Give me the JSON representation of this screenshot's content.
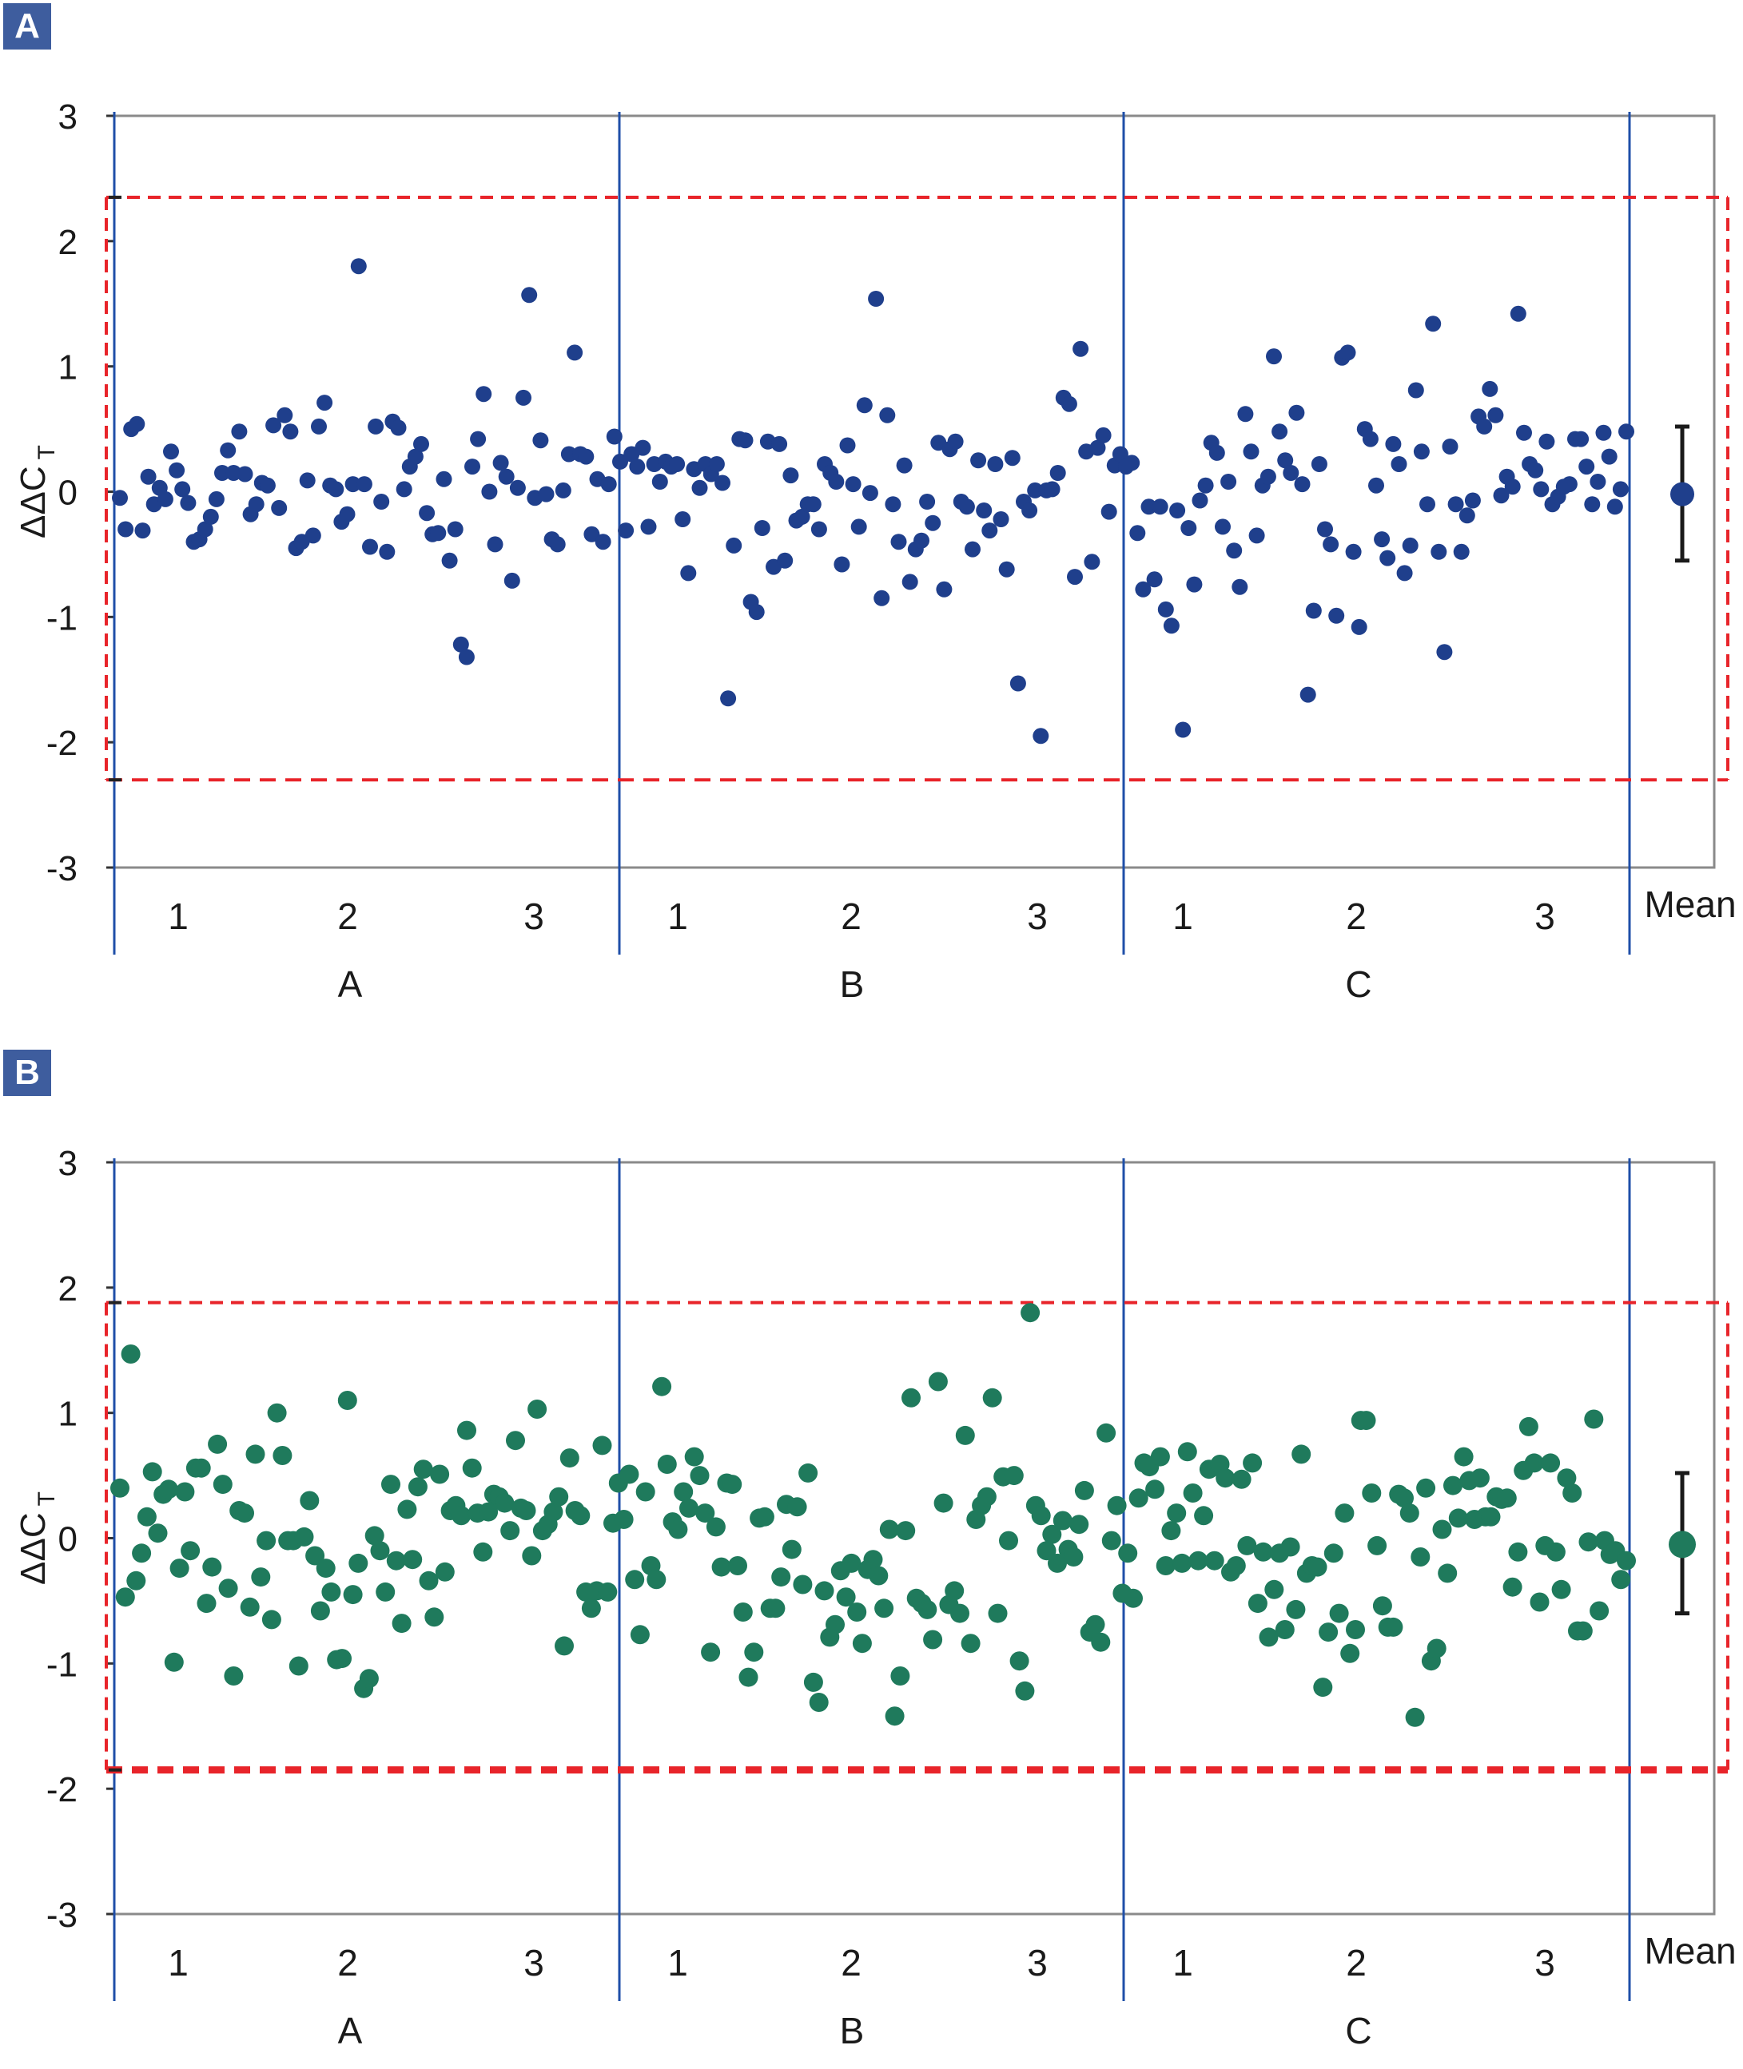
{
  "chart_data": [
    {
      "panel": "A",
      "type": "scatter",
      "ylabel": "ΔΔC",
      "ylabel_sub": "T",
      "ylim": [
        -3,
        3
      ],
      "yticks": [
        3,
        2,
        1,
        0,
        -1,
        -2,
        -3
      ],
      "ytick_labels": [
        "3",
        "2",
        "1",
        "0",
        "-1",
        "-2",
        "-3"
      ],
      "groups": [
        "A",
        "B",
        "C"
      ],
      "subgroups": [
        "1",
        "2",
        "3"
      ],
      "mean_label": "Mean",
      "marker_color": "#1f3f8c",
      "threshold_upper": 2.35,
      "threshold_lower": -2.3,
      "mean_value": -0.02,
      "mean_errorbar": [
        -0.55,
        0.52
      ],
      "values": [
        -0.05,
        -0.3,
        0.5,
        0.54,
        -0.31,
        0.12,
        -0.1,
        0.03,
        -0.06,
        0.32,
        0.17,
        0.02,
        -0.09,
        -0.4,
        -0.38,
        -0.3,
        -0.2,
        -0.06,
        0.15,
        0.33,
        0.15,
        0.48,
        0.14,
        -0.18,
        -0.1,
        0.07,
        0.05,
        0.53,
        -0.13,
        0.61,
        0.48,
        -0.45,
        -0.4,
        0.09,
        -0.35,
        0.52,
        0.71,
        0.05,
        0.02,
        -0.24,
        -0.18,
        0.06,
        1.8,
        0.06,
        -0.44,
        0.52,
        -0.08,
        -0.48,
        0.56,
        0.51,
        0.02,
        0.2,
        0.28,
        0.38,
        -0.17,
        -0.34,
        -0.33,
        0.1,
        -0.55,
        -0.3,
        -1.22,
        -1.32,
        0.2,
        0.42,
        0.78,
        0.0,
        -0.42,
        0.23,
        0.12,
        -0.71,
        0.03,
        0.75,
        1.57,
        -0.05,
        0.41,
        -0.02,
        -0.38,
        -0.42,
        0.01,
        0.3,
        1.11,
        0.3,
        0.28,
        -0.34,
        0.1,
        -0.4,
        0.06,
        0.44,
        0.24,
        -0.31,
        0.3,
        0.2,
        0.35,
        -0.28,
        0.22,
        0.08,
        0.24,
        0.2,
        0.22,
        -0.22,
        -0.65,
        0.18,
        0.03,
        0.22,
        0.14,
        0.22,
        0.07,
        -1.65,
        -0.43,
        0.42,
        0.41,
        -0.88,
        -0.96,
        -0.29,
        0.4,
        -0.6,
        0.38,
        -0.55,
        0.13,
        -0.23,
        -0.2,
        -0.1,
        -0.1,
        -0.3,
        0.22,
        0.15,
        0.08,
        -0.58,
        0.37,
        0.06,
        -0.28,
        0.69,
        -0.01,
        1.54,
        -0.85,
        0.61,
        -0.1,
        -0.4,
        0.21,
        -0.72,
        -0.46,
        -0.39,
        -0.08,
        -0.25,
        0.39,
        -0.78,
        0.34,
        0.4,
        -0.08,
        -0.12,
        -0.46,
        0.25,
        -0.15,
        -0.31,
        0.22,
        -0.22,
        -0.62,
        0.27,
        -1.53,
        -0.08,
        -0.15,
        0.01,
        -1.95,
        0.01,
        0.02,
        0.15,
        0.75,
        0.7,
        -0.68,
        1.14,
        0.32,
        -0.56,
        0.35,
        0.45,
        -0.16,
        0.21,
        0.3,
        0.2,
        0.23,
        -0.33,
        -0.78,
        -0.12,
        -0.7,
        -0.12,
        -0.94,
        -1.07,
        -0.15,
        -1.9,
        -0.29,
        -0.74,
        -0.07,
        0.05,
        0.39,
        0.31,
        -0.28,
        0.08,
        -0.47,
        -0.76,
        0.62,
        0.32,
        -0.35,
        0.05,
        0.12,
        1.08,
        0.48,
        0.25,
        0.15,
        0.63,
        0.06,
        -1.62,
        -0.95,
        0.22,
        -0.3,
        -0.42,
        -0.99,
        1.07,
        1.11,
        -0.48,
        -1.08,
        0.5,
        0.42,
        0.05,
        -0.38,
        -0.53,
        0.38,
        0.22,
        -0.65,
        -0.43,
        0.81,
        0.32,
        -0.1,
        1.34,
        -0.48,
        -1.28,
        0.36,
        -0.1,
        -0.48,
        -0.19,
        -0.07,
        0.6,
        0.52,
        0.82,
        0.61,
        -0.03,
        0.12,
        0.04,
        1.42,
        0.47,
        0.22,
        0.17,
        0.02,
        0.4,
        -0.1,
        -0.04,
        0.04,
        0.06,
        0.42,
        0.42,
        0.2,
        -0.1,
        0.08,
        0.47,
        0.28,
        -0.12,
        0.02,
        0.48
      ]
    },
    {
      "panel": "B",
      "type": "scatter",
      "ylabel": "ΔΔC",
      "ylabel_sub": "T",
      "ylim": [
        -3,
        3
      ],
      "yticks": [
        3,
        2,
        1,
        0,
        -1,
        -2,
        -3
      ],
      "ytick_labels": [
        "3",
        "2",
        "1",
        "0",
        "-1",
        "-2",
        "-3"
      ],
      "groups": [
        "A",
        "B",
        "C"
      ],
      "subgroups": [
        "1",
        "2",
        "3"
      ],
      "mean_label": "Mean",
      "marker_color": "#1f7a5c",
      "threshold_upper": 1.88,
      "threshold_lower": -1.85,
      "mean_value": -0.05,
      "mean_errorbar": [
        -0.6,
        0.52
      ],
      "values": [
        0.4,
        -0.47,
        1.47,
        -0.34,
        -0.12,
        0.17,
        0.53,
        0.04,
        0.35,
        0.39,
        -0.99,
        -0.24,
        0.37,
        -0.1,
        0.56,
        0.56,
        -0.52,
        -0.23,
        0.75,
        0.43,
        -0.4,
        -1.1,
        0.22,
        0.2,
        -0.55,
        0.67,
        -0.31,
        -0.02,
        -0.65,
        1.0,
        0.66,
        -0.02,
        -0.02,
        -1.02,
        0.01,
        0.3,
        -0.14,
        -0.58,
        -0.24,
        -0.43,
        -0.97,
        -0.96,
        1.1,
        -0.45,
        -0.2,
        -1.2,
        -1.12,
        0.02,
        -0.1,
        -0.43,
        0.43,
        -0.18,
        -0.68,
        0.23,
        -0.17,
        0.41,
        0.55,
        -0.34,
        -0.63,
        0.51,
        -0.27,
        0.22,
        0.26,
        0.18,
        0.86,
        0.56,
        0.2,
        -0.11,
        0.21,
        0.35,
        0.33,
        0.28,
        0.06,
        0.78,
        0.24,
        0.22,
        -0.14,
        1.03,
        0.06,
        0.11,
        0.21,
        0.33,
        -0.86,
        0.64,
        0.22,
        0.18,
        -0.43,
        -0.56,
        -0.42,
        0.74,
        -0.43,
        0.12,
        0.44,
        0.15,
        0.51,
        -0.33,
        -0.77,
        0.37,
        -0.22,
        -0.33,
        1.21,
        0.59,
        0.13,
        0.07,
        0.37,
        0.24,
        0.65,
        0.5,
        0.2,
        -0.91,
        0.09,
        -0.23,
        0.44,
        0.43,
        -0.22,
        -0.59,
        -1.11,
        -0.91,
        0.16,
        0.17,
        -0.56,
        -0.56,
        -0.31,
        0.27,
        -0.09,
        0.25,
        -0.37,
        0.52,
        -1.15,
        -1.31,
        -0.42,
        -0.79,
        -0.69,
        -0.26,
        -0.47,
        -0.2,
        -0.59,
        -0.84,
        -0.25,
        -0.17,
        -0.3,
        -0.56,
        0.07,
        -1.42,
        -1.1,
        0.06,
        1.12,
        -0.48,
        -0.52,
        -0.57,
        -0.81,
        1.25,
        0.28,
        -0.53,
        -0.42,
        -0.6,
        0.82,
        -0.84,
        0.15,
        0.26,
        0.33,
        1.12,
        -0.6,
        0.49,
        -0.02,
        0.5,
        -0.98,
        -1.22,
        1.8,
        0.26,
        0.18,
        -0.1,
        0.03,
        -0.2,
        0.14,
        -0.09,
        -0.15,
        0.11,
        0.38,
        -0.75,
        -0.69,
        -0.83,
        0.84,
        -0.02,
        0.26,
        -0.44,
        -0.12,
        -0.48,
        0.32,
        0.6,
        0.57,
        0.39,
        0.65,
        -0.22,
        0.06,
        0.2,
        -0.2,
        0.69,
        0.36,
        -0.18,
        0.18,
        0.55,
        -0.18,
        0.59,
        0.48,
        -0.27,
        -0.22,
        0.47,
        -0.06,
        0.6,
        -0.52,
        -0.11,
        -0.79,
        -0.41,
        -0.12,
        -0.73,
        -0.07,
        -0.57,
        0.67,
        -0.28,
        -0.22,
        -0.23,
        -1.19,
        -0.75,
        -0.12,
        -0.6,
        0.2,
        -0.92,
        -0.73,
        0.94,
        0.94,
        0.36,
        -0.06,
        -0.54,
        -0.71,
        -0.71,
        0.35,
        0.32,
        0.2,
        -1.43,
        -0.15,
        0.4,
        -0.98,
        -0.88,
        0.07,
        -0.28,
        0.42,
        0.16,
        0.65,
        0.46,
        0.15,
        0.48,
        0.17,
        0.17,
        0.33,
        0.31,
        0.32,
        -0.39,
        -0.11,
        0.54,
        0.89,
        0.6,
        -0.51,
        -0.06,
        0.6,
        -0.11,
        -0.41,
        0.48,
        0.36,
        -0.74,
        -0.74,
        -0.03,
        0.95,
        -0.58,
        -0.02,
        -0.13,
        -0.1,
        -0.33,
        -0.18
      ]
    }
  ]
}
